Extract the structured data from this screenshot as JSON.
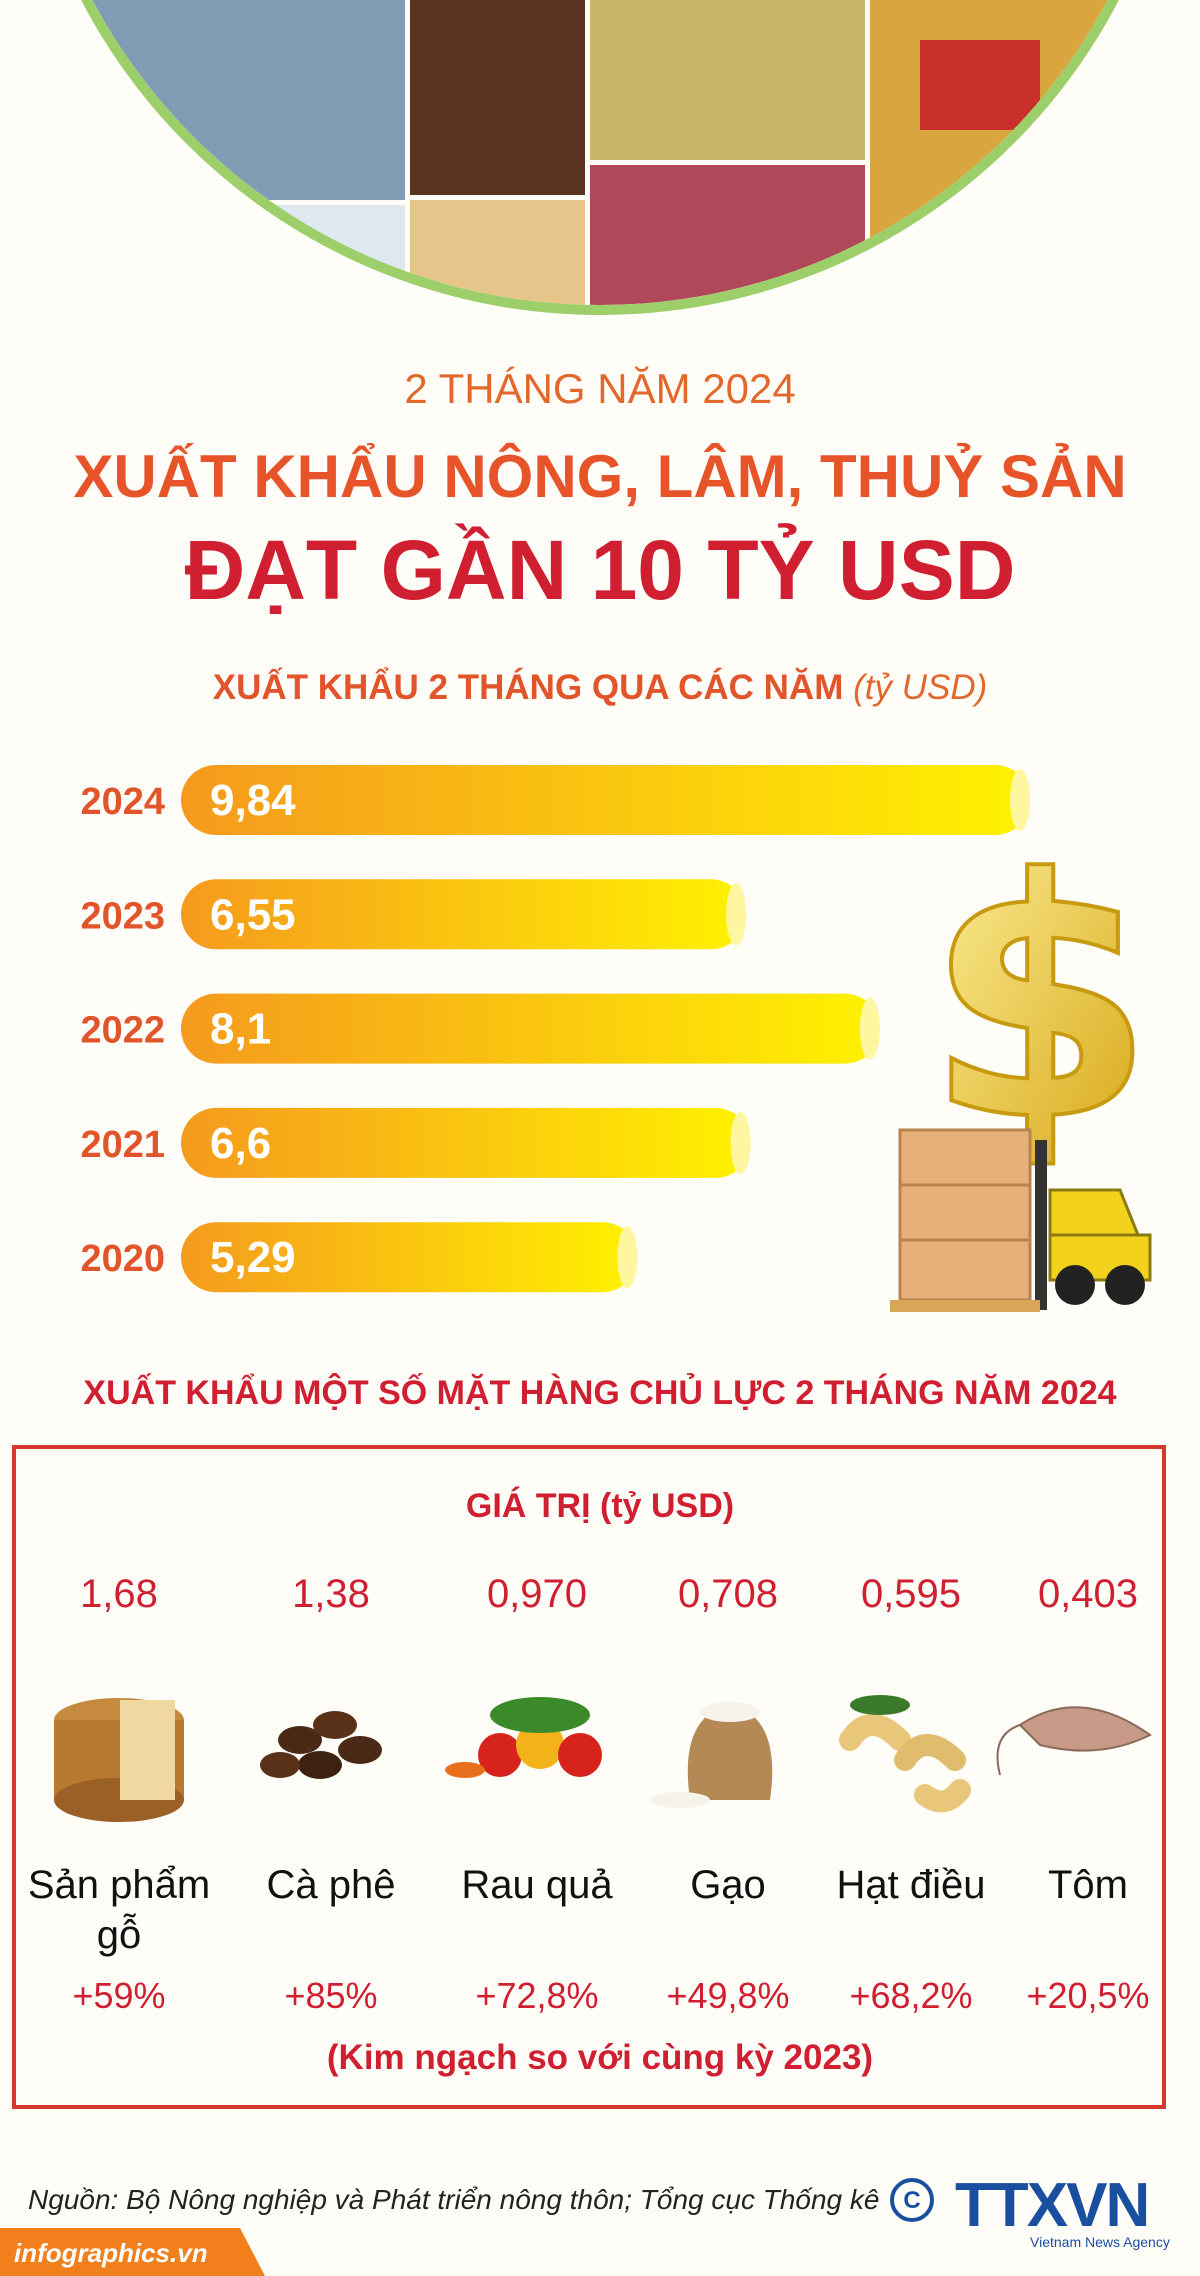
{
  "header": {
    "kicker": "2 THÁNG NĂM 2024",
    "title": "XUẤT KHẨU NÔNG, LÂM, THUỶ SẢN",
    "headline": "ĐẠT GẦN 10 TỶ USD"
  },
  "chart_data": {
    "type": "bar",
    "orientation": "horizontal",
    "title": "XUẤT KHẨU 2 THÁNG QUA CÁC NĂM",
    "unit": "(tỷ USD)",
    "categories": [
      "2024",
      "2023",
      "2022",
      "2021",
      "2020"
    ],
    "values": [
      9.84,
      6.55,
      8.1,
      6.6,
      5.29
    ],
    "value_labels": [
      "9,84",
      "6,55",
      "8,1",
      "6,6",
      "5,29"
    ],
    "color": "#f59a1e"
  },
  "products": {
    "title": "XUẤT KHẨU MỘT SỐ MẶT HÀNG CHỦ LỰC 2 THÁNG NĂM 2024",
    "value_heading": "GIÁ TRỊ (tỷ USD)",
    "items": [
      {
        "value": "1,68",
        "name": "Sản phẩm gỗ",
        "change": "+59%"
      },
      {
        "value": "1,38",
        "name": "Cà phê",
        "change": "+85%"
      },
      {
        "value": "0,970",
        "name": "Rau quả",
        "change": "+72,8%"
      },
      {
        "value": "0,708",
        "name": "Gạo",
        "change": "+49,8%"
      },
      {
        "value": "0,595",
        "name": "Hạt điều",
        "change": "+68,2%"
      },
      {
        "value": "0,403",
        "name": "Tôm",
        "change": "+20,5%"
      }
    ],
    "note": "(Kim ngạch so với cùng kỳ 2023)"
  },
  "footer": {
    "source": "Nguồn: Bộ Nông nghiệp và Phát triển nông thôn; Tổng cục Thống kê",
    "logo": "TTXVN",
    "logo_sub": "Vietnam News Agency",
    "site": "infographics.vn"
  }
}
